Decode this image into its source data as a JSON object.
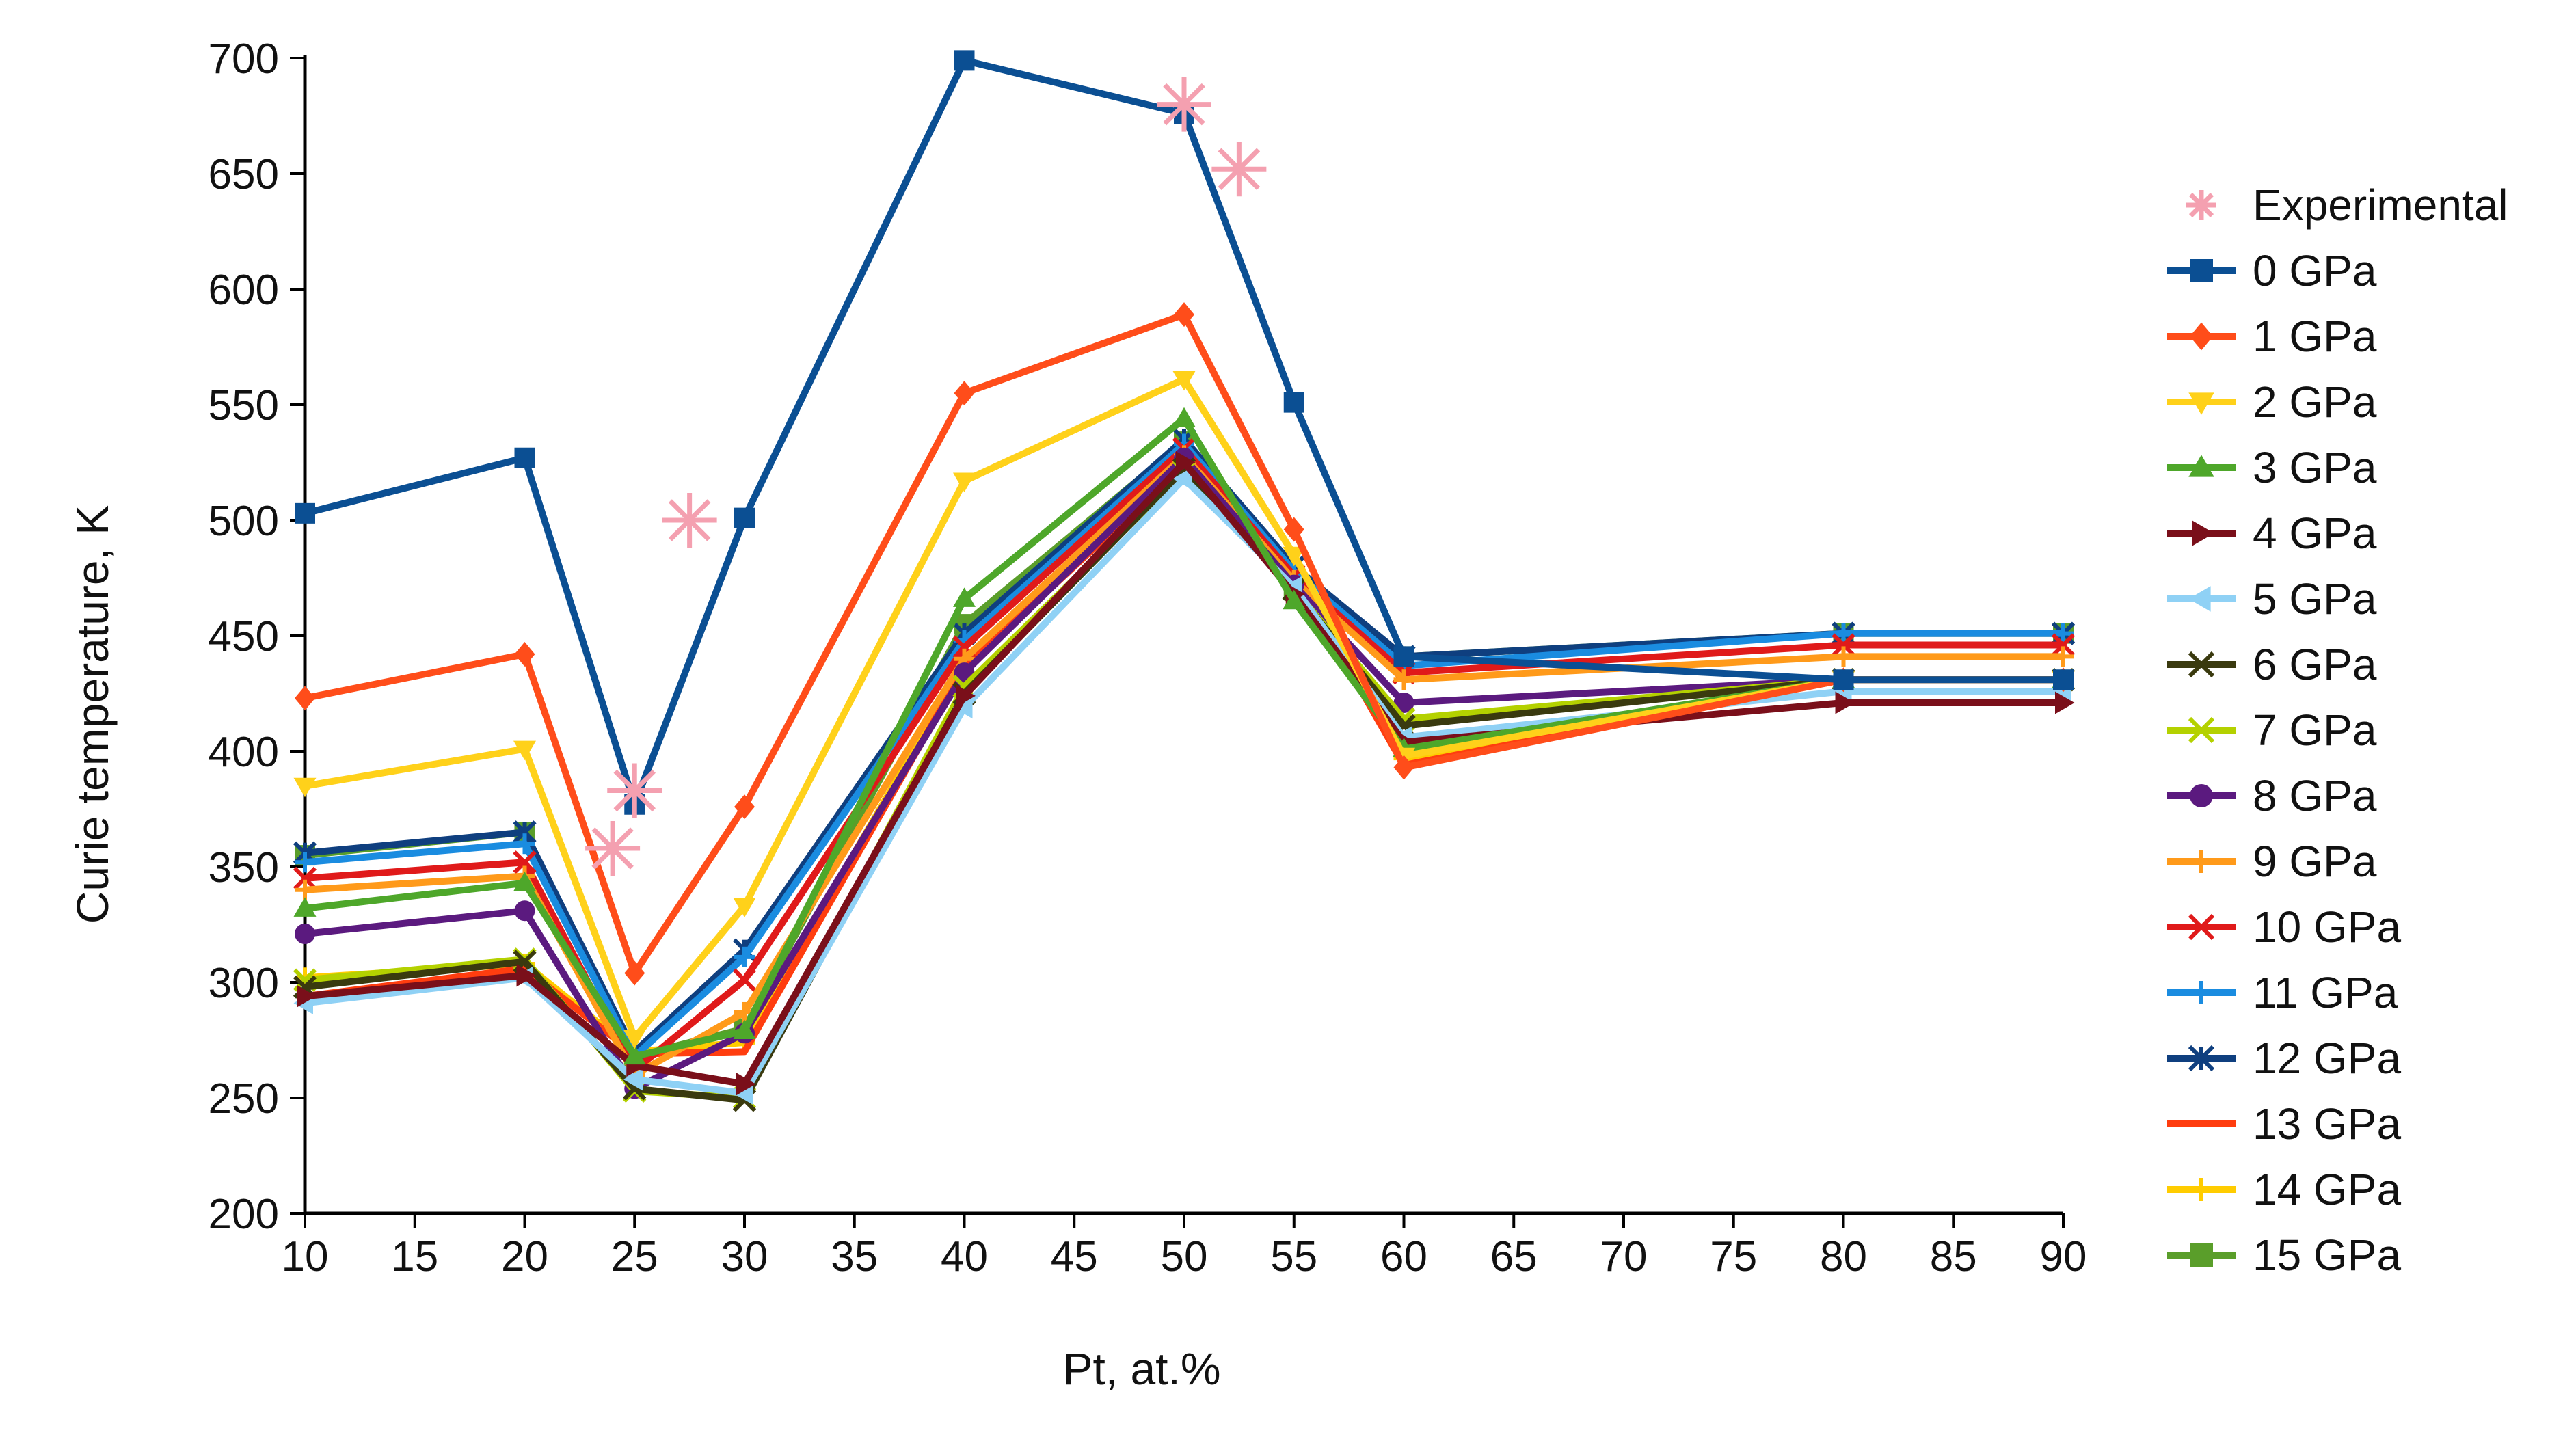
{
  "chart_data": {
    "type": "line",
    "title": "",
    "xlabel": "Pt, at.%",
    "ylabel": "Curie temperature, K",
    "xlim": [
      10,
      90
    ],
    "ylim": [
      200,
      700
    ],
    "xticks": [
      10,
      15,
      20,
      25,
      30,
      35,
      40,
      45,
      50,
      55,
      60,
      65,
      70,
      75,
      80,
      85,
      90
    ],
    "yticks": [
      200,
      250,
      300,
      350,
      400,
      450,
      500,
      550,
      600,
      650,
      700
    ],
    "x": [
      10,
      20,
      25,
      30,
      40,
      50,
      55,
      60,
      80,
      90
    ],
    "grid": false,
    "legend_position": "right",
    "experimental": {
      "name": "Experimental",
      "color": "#f4a0b0",
      "marker": "asterisk",
      "points": [
        [
          24,
          358
        ],
        [
          25,
          383
        ],
        [
          27.5,
          500
        ],
        [
          50,
          680
        ],
        [
          52.5,
          652
        ]
      ]
    },
    "series": [
      {
        "name": "0 GPa",
        "color": "#0b4f93",
        "marker": "square",
        "values": [
          503,
          527,
          377,
          501,
          699,
          676,
          551,
          441,
          431,
          431
        ]
      },
      {
        "name": "1 GPa",
        "color": "#ff4d1a",
        "marker": "diamond",
        "values": [
          423,
          442,
          304,
          376,
          555,
          589,
          496,
          393,
          431,
          431
        ]
      },
      {
        "name": "2 GPa",
        "color": "#ffd11a",
        "marker": "triangle-down",
        "values": [
          385,
          401,
          276,
          333,
          517,
          561,
          485,
          398,
          431,
          431
        ]
      },
      {
        "name": "3 GPa",
        "color": "#4ea72a",
        "marker": "triangle-up",
        "values": [
          332,
          343,
          268,
          279,
          466,
          544,
          465,
          401,
          431,
          431
        ]
      },
      {
        "name": "4 GPa",
        "color": "#7a0f1a",
        "marker": "triangle-right",
        "values": [
          294,
          303,
          264,
          256,
          424,
          525,
          468,
          404,
          421,
          421
        ]
      },
      {
        "name": "5 GPa",
        "color": "#8fd1f5",
        "marker": "triangle-left",
        "values": [
          291,
          302,
          258,
          252,
          419,
          518,
          471,
          406,
          426,
          426
        ]
      },
      {
        "name": "6 GPa",
        "color": "#3a3a0f",
        "marker": "x",
        "values": [
          298,
          309,
          254,
          249,
          425,
          522,
          470,
          411,
          431,
          431
        ]
      },
      {
        "name": "7 GPa",
        "color": "#b4d100",
        "marker": "x",
        "values": [
          301,
          310,
          253,
          250,
          428,
          521,
          470,
          414,
          431,
          431
        ]
      },
      {
        "name": "8 GPa",
        "color": "#5b1a7f",
        "marker": "circle",
        "values": [
          321,
          331,
          254,
          278,
          434,
          527,
          472,
          421,
          431,
          431
        ]
      },
      {
        "name": "9 GPa",
        "color": "#ff9a1a",
        "marker": "plus",
        "values": [
          340,
          346,
          260,
          287,
          440,
          528,
          474,
          431,
          441,
          441
        ]
      },
      {
        "name": "10 GPa",
        "color": "#e01a1a",
        "marker": "x",
        "values": [
          345,
          352,
          262,
          301,
          445,
          531,
          476,
          434,
          446,
          446
        ]
      },
      {
        "name": "11 GPa",
        "color": "#1a8ce0",
        "marker": "plus",
        "values": [
          352,
          360,
          268,
          311,
          448,
          533,
          478,
          437,
          451,
          451
        ]
      },
      {
        "name": "12 GPa",
        "color": "#0f3f7f",
        "marker": "star",
        "values": [
          356,
          365,
          270,
          314,
          451,
          535,
          480,
          441,
          451,
          451
        ]
      },
      {
        "name": "13 GPa",
        "color": "#ff3d0f",
        "marker": "none",
        "values": [
          294,
          306,
          269,
          270,
          436,
          524,
          477,
          394,
          431,
          431
        ]
      },
      {
        "name": "14 GPa",
        "color": "#ffcc00",
        "marker": "plus",
        "values": [
          302,
          308,
          270,
          274,
          438,
          525,
          477,
          397,
          431,
          431
        ]
      },
      {
        "name": "15 GPa",
        "color": "#5a9e2a",
        "marker": "square",
        "values": [
          355,
          365,
          268,
          280,
          455,
          534,
          471,
          441,
          451,
          451
        ]
      }
    ]
  }
}
